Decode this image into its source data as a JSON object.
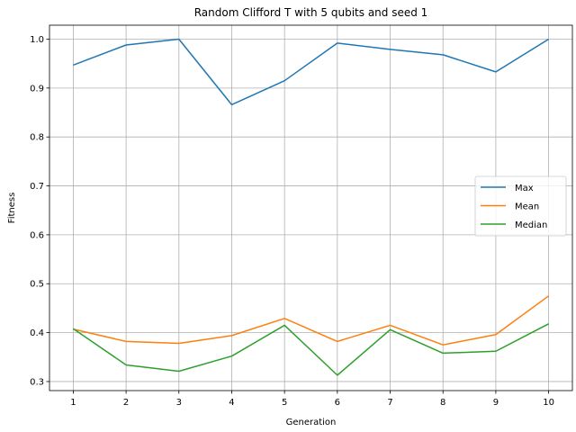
{
  "chart_data": {
    "type": "line",
    "title": "Random Clifford T with 5 qubits and seed 1",
    "xlabel": "Generation",
    "ylabel": "Fitness",
    "x": [
      1,
      2,
      3,
      4,
      5,
      6,
      7,
      8,
      9,
      10
    ],
    "xlim": [
      0.55,
      10.45
    ],
    "ylim": [
      0.2815,
      1.0285
    ],
    "yticks": [
      0.3,
      0.4,
      0.5,
      0.6,
      0.7,
      0.8,
      0.9,
      1.0
    ],
    "ytick_labels": [
      "0.3",
      "0.4",
      "0.5",
      "0.6",
      "0.7",
      "0.8",
      "0.9",
      "1.0"
    ],
    "xtick_labels": [
      "1",
      "2",
      "3",
      "4",
      "5",
      "6",
      "7",
      "8",
      "9",
      "10"
    ],
    "grid": true,
    "legend_position": "center-right",
    "series": [
      {
        "name": "Max",
        "color": "#1f77b4",
        "values": [
          0.947,
          0.988,
          1.0,
          0.866,
          0.915,
          0.992,
          0.979,
          0.968,
          0.933,
          1.0
        ]
      },
      {
        "name": "Mean",
        "color": "#ff7f0e",
        "values": [
          0.407,
          0.382,
          0.378,
          0.394,
          0.429,
          0.382,
          0.415,
          0.375,
          0.396,
          0.475
        ]
      },
      {
        "name": "Median",
        "color": "#2ca02c",
        "values": [
          0.408,
          0.334,
          0.321,
          0.352,
          0.415,
          0.313,
          0.406,
          0.358,
          0.362,
          0.418
        ]
      }
    ]
  }
}
